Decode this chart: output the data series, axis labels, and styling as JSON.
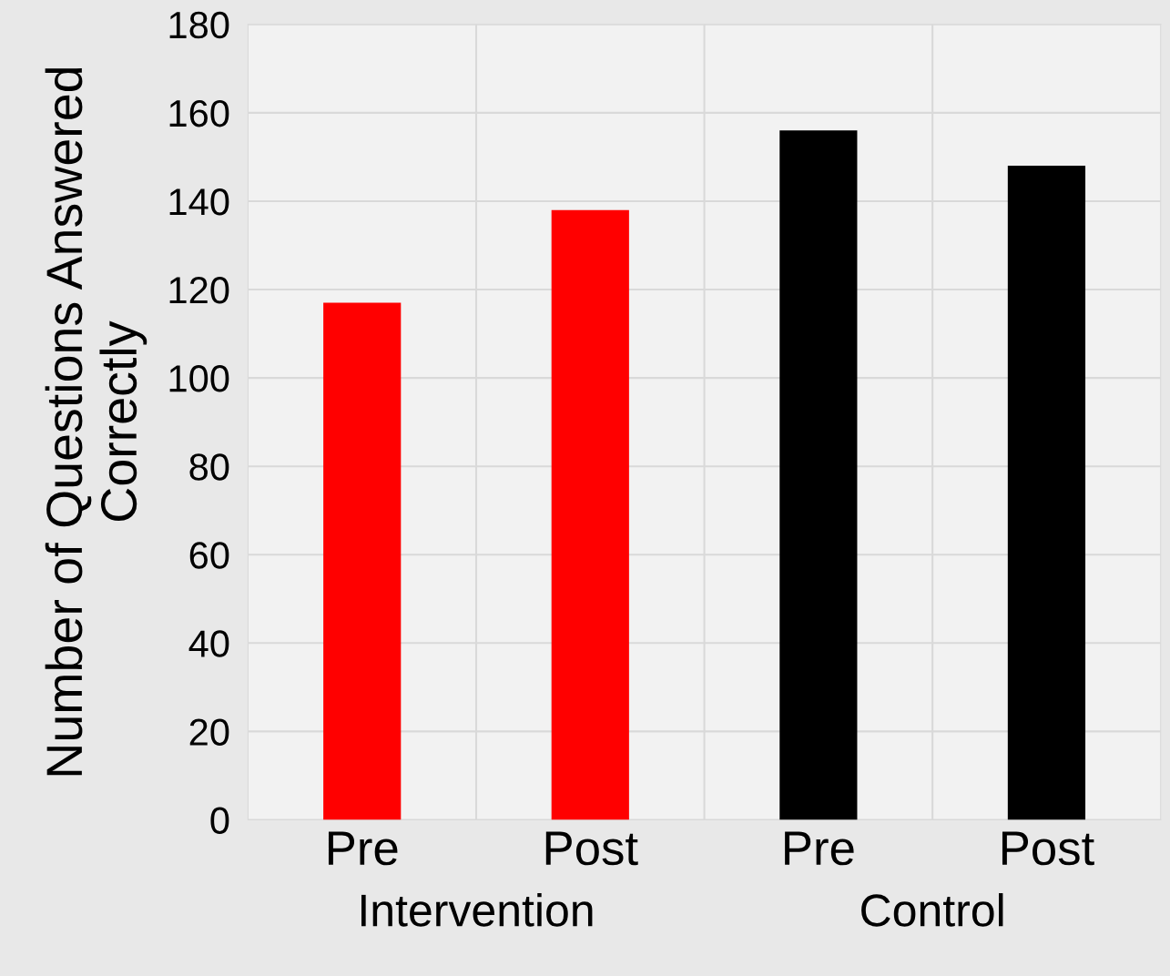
{
  "chart_data": {
    "type": "bar",
    "categories": [
      "Pre",
      "Post",
      "Pre",
      "Post"
    ],
    "values": [
      117,
      138,
      156,
      148
    ],
    "colors": [
      "#ff0000",
      "#ff0000",
      "#000000",
      "#000000"
    ],
    "ylabel": "Number of Questions Answered Correctly",
    "ylim": [
      0,
      180
    ],
    "yticks": [
      0,
      20,
      40,
      60,
      80,
      100,
      120,
      140,
      160,
      180
    ],
    "annotations": [
      "Intervention",
      "Control"
    ],
    "grid": true
  }
}
